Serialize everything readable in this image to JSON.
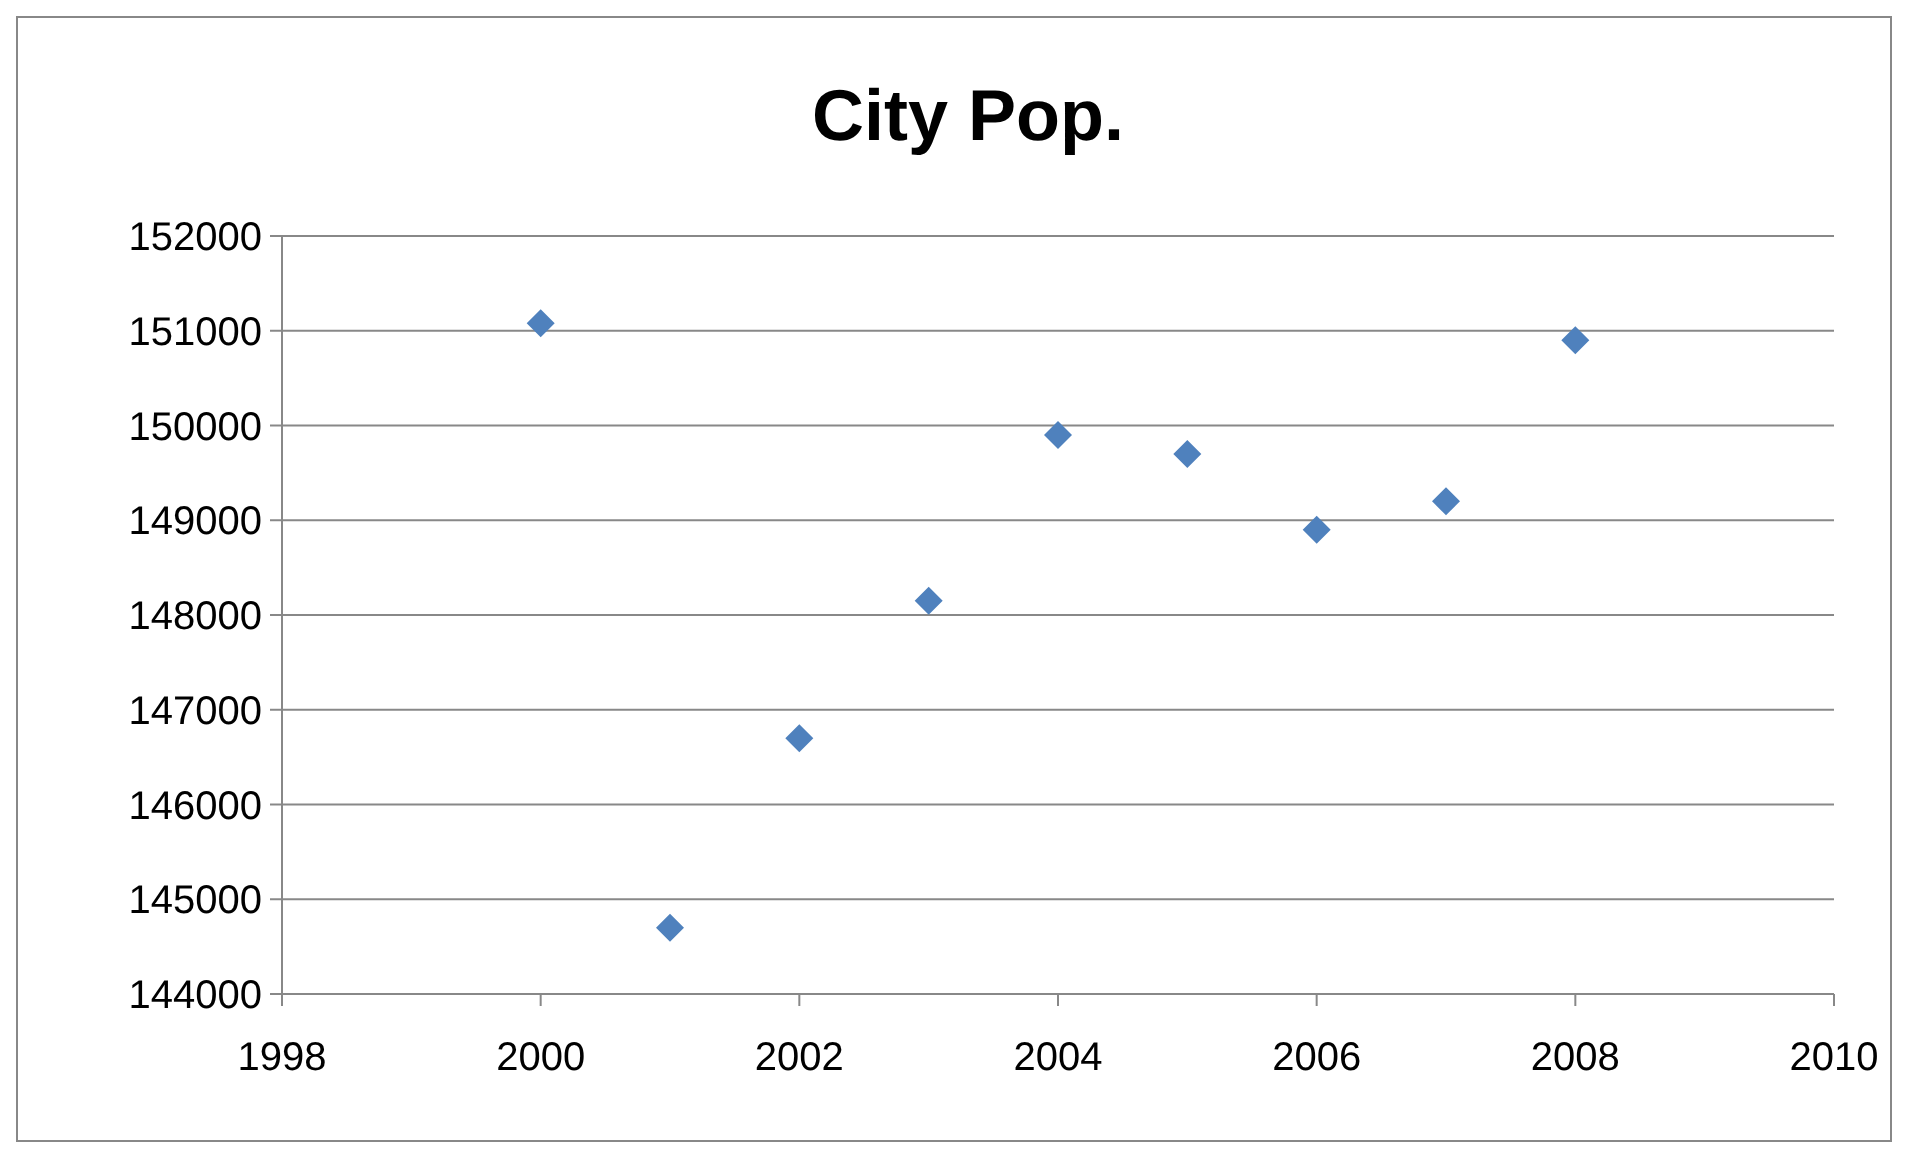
{
  "chart_data": {
    "type": "scatter",
    "title": "City Pop.",
    "x": [
      2000,
      2001,
      2002,
      2003,
      2004,
      2005,
      2006,
      2007,
      2008
    ],
    "series": [
      {
        "color": "#4f81bd",
        "values": [
          151080,
          144700,
          146700,
          148150,
          149900,
          149700,
          148900,
          149200,
          150900
        ]
      }
    ],
    "xlim": [
      1998,
      2010
    ],
    "xticks": [
      1998,
      2000,
      2002,
      2004,
      2006,
      2008,
      2010
    ],
    "ylim": [
      144000,
      152000
    ],
    "yticks": [
      144000,
      145000,
      146000,
      147000,
      148000,
      149000,
      150000,
      151000,
      152000
    ],
    "grid": "y",
    "marker": "diamond"
  }
}
